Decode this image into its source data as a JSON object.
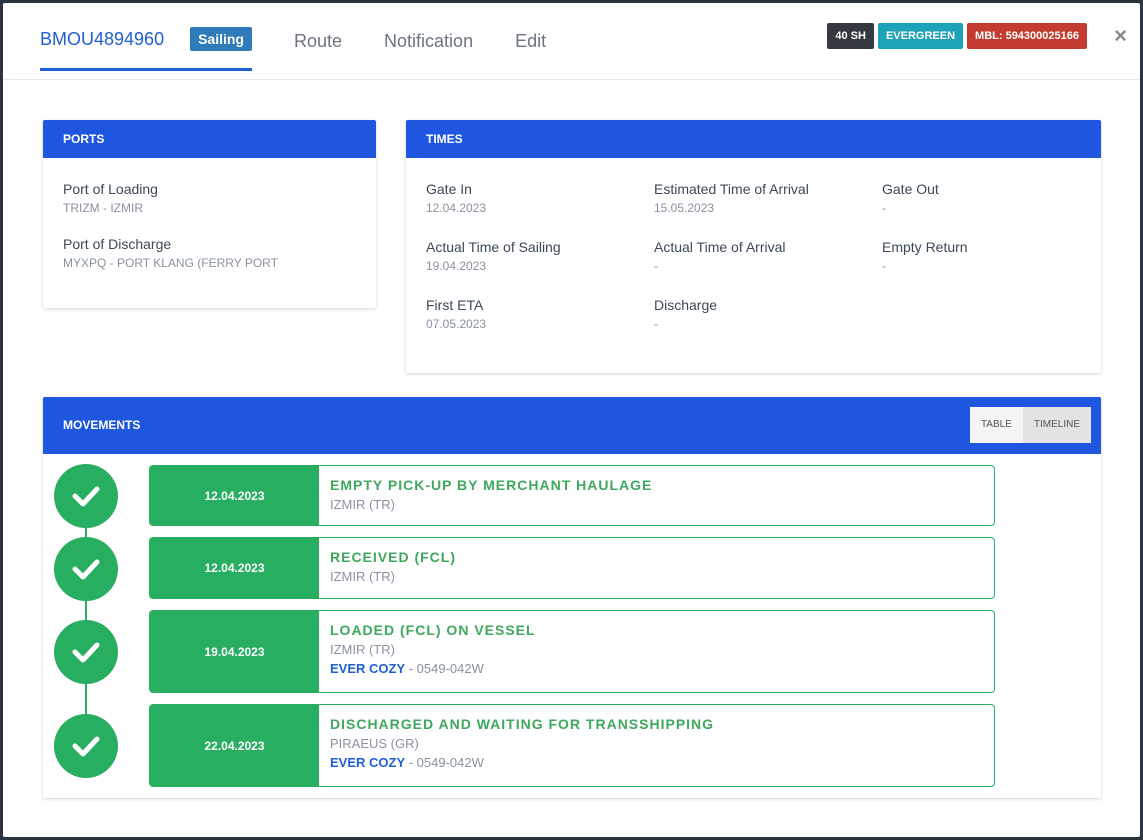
{
  "header": {
    "container_id": "BMOU4894960",
    "status": "Sailing",
    "tabs": [
      "Route",
      "Notification",
      "Edit"
    ],
    "badges": [
      "40 SH",
      "EVERGREEN",
      "MBL: 594300025166"
    ],
    "close": "×"
  },
  "ports": {
    "title": "PORTS",
    "loading_label": "Port of Loading",
    "loading_value": "TRIZM - IZMIR",
    "discharge_label": "Port of Discharge",
    "discharge_value": "MYXPQ - PORT KLANG (FERRY PORT"
  },
  "times": {
    "title": "TIMES",
    "fields": [
      {
        "label": "Gate In",
        "value": "12.04.2023"
      },
      {
        "label": "Estimated Time of Arrival",
        "value": "15.05.2023"
      },
      {
        "label": "Gate Out",
        "value": "-"
      },
      {
        "label": "Actual Time of Sailing",
        "value": "19.04.2023"
      },
      {
        "label": "Actual Time of Arrival",
        "value": "-"
      },
      {
        "label": "Empty Return",
        "value": "-"
      },
      {
        "label": "First ETA",
        "value": "07.05.2023"
      },
      {
        "label": "Discharge",
        "value": "-"
      }
    ]
  },
  "movements": {
    "title": "MOVEMENTS",
    "view_table": "TABLE",
    "view_timeline": "TIMELINE",
    "events": [
      {
        "date": "12.04.2023",
        "title": "EMPTY PICK-UP BY MERCHANT HAULAGE",
        "location": "IZMIR (TR)",
        "vessel": "",
        "voyage": ""
      },
      {
        "date": "12.04.2023",
        "title": "RECEIVED (FCL)",
        "location": "IZMIR (TR)",
        "vessel": "",
        "voyage": ""
      },
      {
        "date": "19.04.2023",
        "title": "LOADED (FCL) ON VESSEL",
        "location": "IZMIR (TR)",
        "vessel": "EVER COZY",
        "voyage": " - 0549-042W"
      },
      {
        "date": "22.04.2023",
        "title": "DISCHARGED AND WAITING FOR TRANSSHIPPING",
        "location": "PIRAEUS (GR)",
        "vessel": "EVER COZY",
        "voyage": " - 0549-042W"
      }
    ]
  },
  "colors": {
    "accent": "#1f56e0",
    "success": "#27ae60",
    "status_badge": "#2f7ab8"
  }
}
